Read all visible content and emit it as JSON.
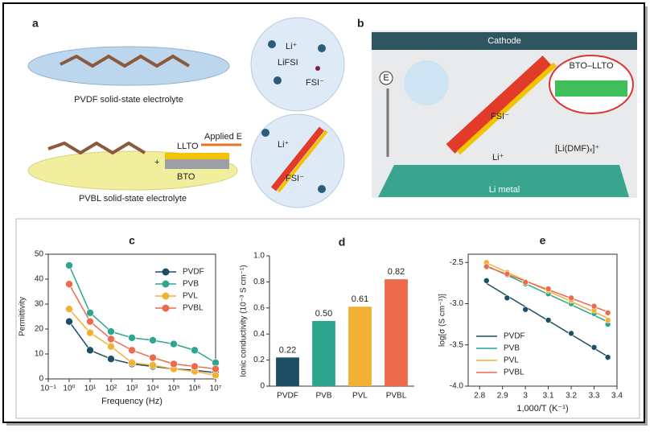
{
  "panel_a": {
    "letter": "a",
    "salt": "LiFSI",
    "cation": "Li⁺",
    "anion": "FSI⁻",
    "top_caption": "PVDF solid-state electrolyte",
    "field": "Applied E",
    "filler_top": "LLTO",
    "plus": "+",
    "filler_bottom": "BTO",
    "cation_2": "Li⁺",
    "anion_2": "FSI⁻",
    "bottom_caption": "PVBL solid-state electrolyte"
  },
  "panel_b": {
    "letter": "b",
    "top_electrode": "Cathode",
    "field": "E",
    "interface": "BTO–LLTO",
    "anion": "FSI⁻",
    "cation": "Li⁺",
    "complex": "[Li(DMF)ₓ]⁺",
    "bottom_electrode": "Li metal"
  },
  "chart_data": [
    {
      "type": "line",
      "panel": "c",
      "xlabel": "Frequency (Hz)",
      "ylabel": "Permittivity",
      "xscale": "log",
      "x": [
        1,
        10,
        100,
        1000,
        10000,
        100000,
        1000000,
        10000000
      ],
      "xlim": [
        0.1,
        10000000
      ],
      "xticks": [
        {
          "value": 0.1,
          "label": "10⁻¹"
        },
        {
          "value": 1,
          "label": "10⁰"
        },
        {
          "value": 10,
          "label": "10¹"
        },
        {
          "value": 100,
          "label": "10²"
        },
        {
          "value": 1000,
          "label": "10³"
        },
        {
          "value": 10000,
          "label": "10⁴"
        },
        {
          "value": 100000,
          "label": "10⁵"
        },
        {
          "value": 1000000,
          "label": "10⁶"
        },
        {
          "value": 10000000,
          "label": "10⁷"
        }
      ],
      "ylim": [
        0,
        50
      ],
      "yticks": [
        0,
        10,
        20,
        30,
        40,
        50
      ],
      "legend": "upper right",
      "series": [
        {
          "name": "PVDF",
          "color": "#1d4e63",
          "values": [
            23,
            11.5,
            8,
            6,
            5,
            4,
            3.5,
            2.5
          ]
        },
        {
          "name": "PVB",
          "color": "#2ea58f",
          "values": [
            45.5,
            26.5,
            19,
            16.5,
            15.5,
            14,
            11.5,
            6.5
          ]
        },
        {
          "name": "PVL",
          "color": "#f2b134",
          "values": [
            28,
            18.5,
            13,
            6.5,
            5.5,
            4,
            3,
            1.5
          ]
        },
        {
          "name": "PVBL",
          "color": "#ec6b4d",
          "values": [
            38,
            23,
            16,
            11.5,
            8.5,
            6,
            5,
            4
          ]
        }
      ]
    },
    {
      "type": "bar",
      "panel": "d",
      "ylabel": "Ionic conductivity (10⁻³ S cm⁻¹)",
      "categories": [
        "PVDF",
        "PVB",
        "PVL",
        "PVBL"
      ],
      "values": [
        0.22,
        0.5,
        0.61,
        0.82
      ],
      "value_labels": [
        "0.22",
        "0.50",
        "0.61",
        "0.82"
      ],
      "colors": [
        "#1d4e63",
        "#2ea58f",
        "#f2b134",
        "#ec6b4d"
      ],
      "ylim": [
        0,
        1
      ],
      "yticks": [
        0,
        0.2,
        0.4,
        0.6,
        0.8,
        {
          "value": 1,
          "label": "1.0"
        }
      ]
    },
    {
      "type": "scatter",
      "panel": "e",
      "xlabel": "1,000/T (K⁻¹)",
      "ylabel": "log[σ (S cm⁻¹)]",
      "trendline": true,
      "x": [
        2.83,
        2.92,
        3.0,
        3.1,
        3.2,
        3.3,
        3.36
      ],
      "xlim": [
        2.75,
        3.4
      ],
      "xticks": [
        2.8,
        2.9,
        3,
        3.1,
        3.2,
        3.3,
        3.4
      ],
      "ylim": [
        -4.0,
        -2.4
      ],
      "yticks": [
        {
          "value": -4,
          "label": "-4.0"
        },
        -3.5,
        {
          "value": -3,
          "label": "-3.0"
        },
        -2.5
      ],
      "legend": "lower left",
      "series": [
        {
          "name": "PVDF",
          "color": "#1d4e63",
          "values": [
            -2.72,
            -2.93,
            -3.07,
            -3.2,
            -3.36,
            -3.53,
            -3.65
          ]
        },
        {
          "name": "PVB",
          "color": "#2ea58f",
          "values": [
            -2.55,
            -2.65,
            -2.76,
            -2.88,
            -3.0,
            -3.12,
            -3.25
          ]
        },
        {
          "name": "PVL",
          "color": "#f2b134",
          "values": [
            -2.5,
            -2.62,
            -2.74,
            -2.84,
            -2.96,
            -3.08,
            -3.2
          ]
        },
        {
          "name": "PVBL",
          "color": "#ec6b4d",
          "values": [
            -2.55,
            -2.64,
            -2.74,
            -2.82,
            -2.93,
            -3.03,
            -3.11
          ]
        }
      ]
    }
  ]
}
